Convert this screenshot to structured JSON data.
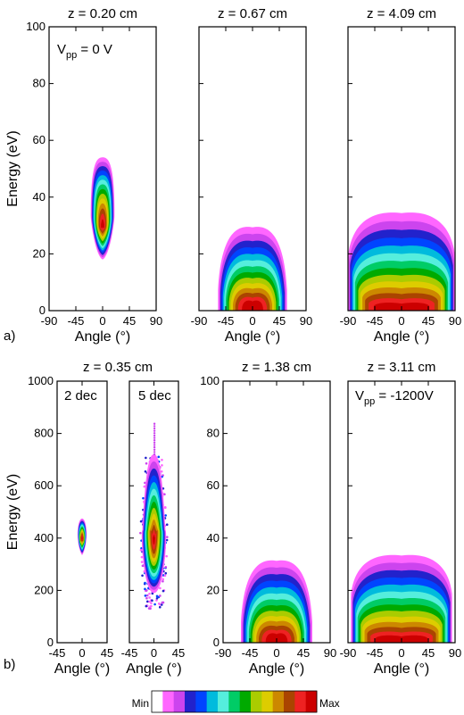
{
  "chart_data": [
    {
      "type": "heatmap",
      "panel": "a)",
      "title": "z = 0.20 cm",
      "annotation": "V",
      "annotation_sub": "pp",
      "annotation_rest": " = 0 V",
      "xlabel": "Angle (°)",
      "ylabel": "Energy (eV)",
      "xlim": [
        -90,
        90
      ],
      "ylim": [
        0,
        100
      ],
      "xticks": [
        "-90",
        "-45",
        "0",
        "45",
        "90"
      ],
      "yticks": [
        "0",
        "20",
        "40",
        "60",
        "80",
        "100"
      ],
      "distribution": {
        "center_angle": 0,
        "peak_energy": 30,
        "energy_min": 18,
        "energy_max": 54,
        "angle_half_width": 20
      }
    },
    {
      "type": "heatmap",
      "panel": "a)",
      "title": "z = 0.67 cm",
      "xlabel": "Angle (°)",
      "xlim": [
        -90,
        90
      ],
      "ylim": [
        0,
        100
      ],
      "xticks": [
        "-90",
        "-45",
        "0",
        "45",
        "90"
      ],
      "distribution": {
        "center_angle": 0,
        "peak_energy": 3,
        "energy_min": 0,
        "energy_max": 30,
        "angle_half_width": 58
      }
    },
    {
      "type": "heatmap",
      "panel": "a)",
      "title": "z = 4.09 cm",
      "xlabel": "Angle (°)",
      "xlim": [
        -90,
        90
      ],
      "ylim": [
        0,
        100
      ],
      "xticks": [
        "-90",
        "-45",
        "0",
        "45",
        "90"
      ],
      "distribution": {
        "center_angle": 0,
        "peak_energy": 2,
        "energy_min": 0,
        "energy_max": 35,
        "angle_half_width": 90
      }
    },
    {
      "type": "heatmap",
      "panel": "b)",
      "title": "z = 0.35 cm",
      "annotation": "2 dec",
      "xlabel": "Angle (°)",
      "ylabel": "Energy (eV)",
      "xlim": [
        -45,
        45
      ],
      "ylim": [
        0,
        1000
      ],
      "xticks": [
        "-45",
        "0",
        "45"
      ],
      "yticks": [
        "0",
        "200",
        "400",
        "600",
        "800",
        "1000"
      ],
      "distribution": {
        "center_angle": 0,
        "peak_energy": 400,
        "energy_min": 335,
        "energy_max": 475,
        "angle_half_width": 8
      }
    },
    {
      "type": "heatmap",
      "panel": "b)",
      "annotation": "5 dec",
      "xlabel": "Angle (°)",
      "xlim": [
        -45,
        45
      ],
      "ylim": [
        0,
        1000
      ],
      "xticks": [
        "-45",
        "0",
        "45"
      ],
      "distribution": {
        "center_angle": 0,
        "peak_energy": 400,
        "energy_min": 130,
        "energy_max": 840,
        "angle_half_width": 25
      }
    },
    {
      "type": "heatmap",
      "panel": "b)",
      "title": "z = 1.38 cm",
      "xlabel": "Angle (°)",
      "xlim": [
        -90,
        90
      ],
      "ylim": [
        0,
        100
      ],
      "xticks": [
        "-90",
        "-45",
        "0",
        "45",
        "90"
      ],
      "yticks": [
        "0",
        "20",
        "40",
        "60",
        "80",
        "100"
      ],
      "distribution": {
        "center_angle": 0,
        "peak_energy": 3,
        "energy_min": 0,
        "energy_max": 32,
        "angle_half_width": 60
      }
    },
    {
      "type": "heatmap",
      "panel": "b)",
      "title": "z = 3.11 cm",
      "annotation": "V",
      "annotation_sub": "pp",
      "annotation_rest": " = -1200V",
      "xlabel": "Angle (°)",
      "xlim": [
        -90,
        90
      ],
      "ylim": [
        0,
        100
      ],
      "xticks": [
        "-90",
        "-45",
        "0",
        "45",
        "90"
      ],
      "distribution": {
        "center_angle": 0,
        "peak_energy": 2,
        "energy_min": 0,
        "energy_max": 34,
        "angle_half_width": 85
      }
    }
  ],
  "panel_labels": [
    "a)",
    "b)"
  ],
  "colorbar": {
    "min_label": "Min",
    "max_label": "Max",
    "colors": [
      "#ffffff",
      "#ff66ff",
      "#cc44ee",
      "#2222cc",
      "#0044ff",
      "#00bbdd",
      "#55eedd",
      "#00cc66",
      "#00aa00",
      "#aacc00",
      "#ddcc00",
      "#cc8800",
      "#aa4400",
      "#ee2222",
      "#cc0000"
    ]
  }
}
